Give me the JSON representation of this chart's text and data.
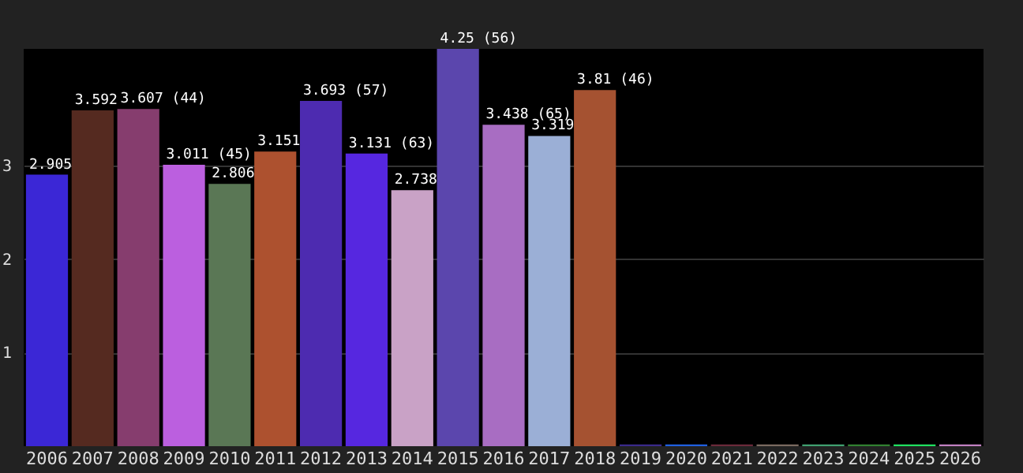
{
  "chart_data": {
    "type": "bar",
    "categories": [
      "2006",
      "2007",
      "2008",
      "2009",
      "2010",
      "2011",
      "2012",
      "2013",
      "2014",
      "2015",
      "2016",
      "2017",
      "2018",
      "2019",
      "2020",
      "2021",
      "2022",
      "2023",
      "2024",
      "2025",
      "2026"
    ],
    "values": [
      2.905,
      3.592,
      3.607,
      3.011,
      2.806,
      3.151,
      3.693,
      3.131,
      2.738,
      4.25,
      3.438,
      3.319,
      3.81,
      0.02,
      0.02,
      0.02,
      0.02,
      0.02,
      0.02,
      0.02,
      0.02
    ],
    "value_labels": [
      "2.905",
      "3.592",
      "3.607 (44)",
      "3.011 (45)",
      "2.806",
      "3.151",
      "3.693 (57)",
      "3.131 (63)",
      "2.738",
      "4.25 (56)",
      "3.438 (65)",
      "3.319",
      "3.81 (46)",
      null,
      null,
      null,
      null,
      null,
      null,
      null,
      null
    ],
    "colors": [
      "#3b27d6",
      "#552a20",
      "#863d6e",
      "#bb5fdf",
      "#5a7755",
      "#ad512f",
      "#4d2bb0",
      "#5627e0",
      "#c9a2c6",
      "#5b46ad",
      "#a86dc2",
      "#9bafd6",
      "#a55231",
      "#3a2a8a",
      "#2060e0",
      "#6a2a3a",
      "#7a6a60",
      "#40a070",
      "#308030",
      "#20e060",
      "#c080c0"
    ],
    "ylim": [
      0,
      4.25
    ],
    "yticks": [
      1,
      2,
      3
    ],
    "grid": "y"
  }
}
